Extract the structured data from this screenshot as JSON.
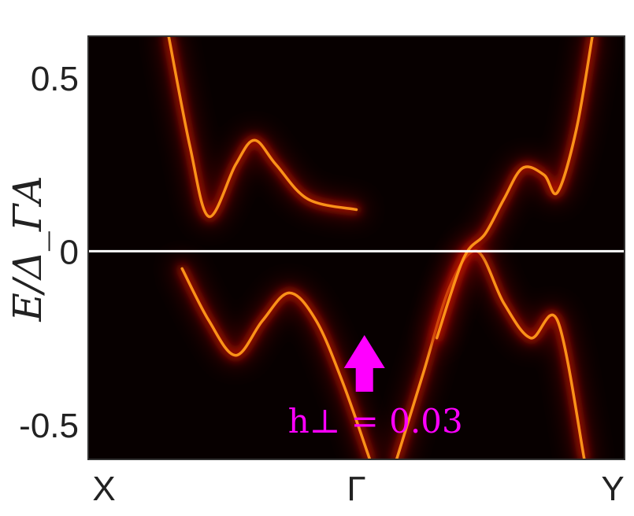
{
  "chart_data": {
    "type": "heatmap",
    "title": "",
    "ylabel": "E/Δ_ΓA",
    "xlabel": "",
    "x_ticks": [
      "X",
      "Γ",
      "Y"
    ],
    "y_ticks": [
      0.5,
      0,
      -0.5
    ],
    "y_tick_labels": [
      "0.5",
      "0",
      "-0.5"
    ],
    "ylim": [
      -0.6,
      0.62
    ],
    "xlim": [
      0,
      2
    ],
    "colormap": "hot",
    "background_color": "#070000",
    "zero_line": {
      "y": 0,
      "color": "#ffffff"
    },
    "bands": [
      {
        "name": "",
        "points": [
          [
            0.3,
            0.62
          ],
          [
            0.38,
            0.3
          ],
          [
            0.45,
            0.1
          ],
          [
            0.55,
            0.25
          ],
          [
            0.62,
            0.32
          ],
          [
            0.7,
            0.25
          ],
          [
            0.82,
            0.15
          ],
          [
            1.0,
            0.12
          ]
        ]
      },
      {
        "name": "",
        "points": [
          [
            0.35,
            -0.05
          ],
          [
            0.45,
            -0.2
          ],
          [
            0.55,
            -0.3
          ],
          [
            0.65,
            -0.2
          ],
          [
            0.75,
            -0.12
          ],
          [
            0.85,
            -0.2
          ],
          [
            0.95,
            -0.38
          ],
          [
            1.05,
            -0.6
          ]
        ]
      },
      {
        "name": "",
        "points": [
          [
            1.15,
            -0.6
          ],
          [
            1.25,
            -0.35
          ],
          [
            1.35,
            -0.1
          ],
          [
            1.45,
            0.0
          ],
          [
            1.55,
            -0.15
          ],
          [
            1.65,
            -0.25
          ],
          [
            1.75,
            -0.2
          ],
          [
            1.85,
            -0.6
          ]
        ]
      },
      {
        "name": "",
        "points": [
          [
            1.3,
            -0.25
          ],
          [
            1.4,
            -0.02
          ],
          [
            1.48,
            0.05
          ],
          [
            1.55,
            0.15
          ],
          [
            1.62,
            0.24
          ],
          [
            1.7,
            0.22
          ],
          [
            1.75,
            0.17
          ],
          [
            1.82,
            0.35
          ],
          [
            1.88,
            0.62
          ]
        ]
      }
    ],
    "annotation": {
      "label": "h⊥ = 0.03",
      "color": "#ff00ff",
      "arrow_direction": "up",
      "arrow_x": 1.03,
      "label_x": 1.03
    }
  }
}
